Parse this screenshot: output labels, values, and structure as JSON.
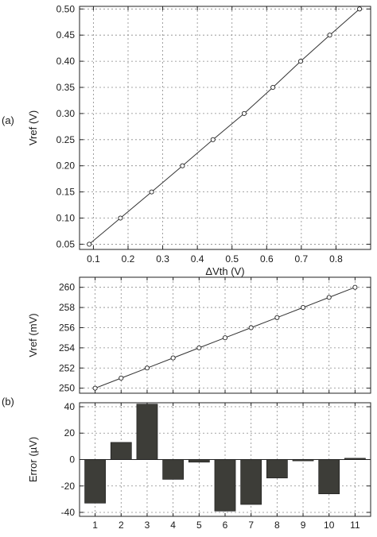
{
  "panel_labels": {
    "a": "(a)",
    "b": "(b)"
  },
  "chart_data": [
    {
      "id": "a",
      "type": "line",
      "title": "",
      "xlabel": "ΔVth (V)",
      "ylabel": "Vref (V)",
      "xlim": [
        0.06,
        0.9
      ],
      "ylim": [
        0.04,
        0.505
      ],
      "xticks": [
        0.1,
        0.2,
        0.3,
        0.4,
        0.5,
        0.6,
        0.7,
        0.8
      ],
      "xtick_labels": [
        "0.1",
        "0.2",
        "0.3",
        "0.4",
        "0.5",
        "0.6",
        "0.7",
        "0.8"
      ],
      "yticks": [
        0.05,
        0.1,
        0.15,
        0.2,
        0.25,
        0.3,
        0.35,
        0.4,
        0.45,
        0.5
      ],
      "ytick_labels": [
        "0.05",
        "0.10",
        "0.15",
        "0.20",
        "0.25",
        "0.30",
        "0.35",
        "0.40",
        "0.45",
        "0.50"
      ],
      "grid": true,
      "marker": "circle",
      "series": [
        {
          "x": [
            0.088,
            0.178,
            0.268,
            0.357,
            0.445,
            0.535,
            0.618,
            0.698,
            0.782,
            0.868
          ],
          "y": [
            0.05,
            0.1,
            0.15,
            0.2,
            0.25,
            0.3,
            0.35,
            0.4,
            0.45,
            0.5
          ]
        }
      ]
    },
    {
      "id": "b-top",
      "type": "line",
      "title": "",
      "xlabel": "",
      "ylabel": "Vref (mV)",
      "xlim": [
        0.4,
        11.6
      ],
      "ylim": [
        249.5,
        261.0
      ],
      "xticks": [
        1,
        2,
        3,
        4,
        5,
        6,
        7,
        8,
        9,
        10,
        11
      ],
      "yticks": [
        250,
        252,
        254,
        256,
        258,
        260
      ],
      "ytick_labels": [
        "250",
        "252",
        "254",
        "256",
        "258",
        "260"
      ],
      "grid": true,
      "marker": "circle",
      "series": [
        {
          "x": [
            1,
            2,
            3,
            4,
            5,
            6,
            7,
            8,
            9,
            10,
            11
          ],
          "y": [
            250,
            251,
            252,
            253,
            254,
            255,
            256,
            257,
            258,
            259,
            260
          ]
        }
      ]
    },
    {
      "id": "b-bottom",
      "type": "bar",
      "title": "",
      "xlabel": "",
      "ylabel": "Error (µV)",
      "categories": [
        "1",
        "2",
        "3",
        "4",
        "5",
        "6",
        "7",
        "8",
        "9",
        "10",
        "11"
      ],
      "values": [
        -33,
        13,
        42,
        -15,
        -2,
        -39,
        -34,
        -14,
        -1,
        -26,
        1
      ],
      "xlim": [
        0.4,
        11.6
      ],
      "ylim": [
        -43,
        43
      ],
      "yticks": [
        -40,
        -20,
        0,
        20,
        40
      ],
      "ytick_labels": [
        "-40",
        "-20",
        "0",
        "20",
        "40"
      ],
      "grid": true
    }
  ]
}
